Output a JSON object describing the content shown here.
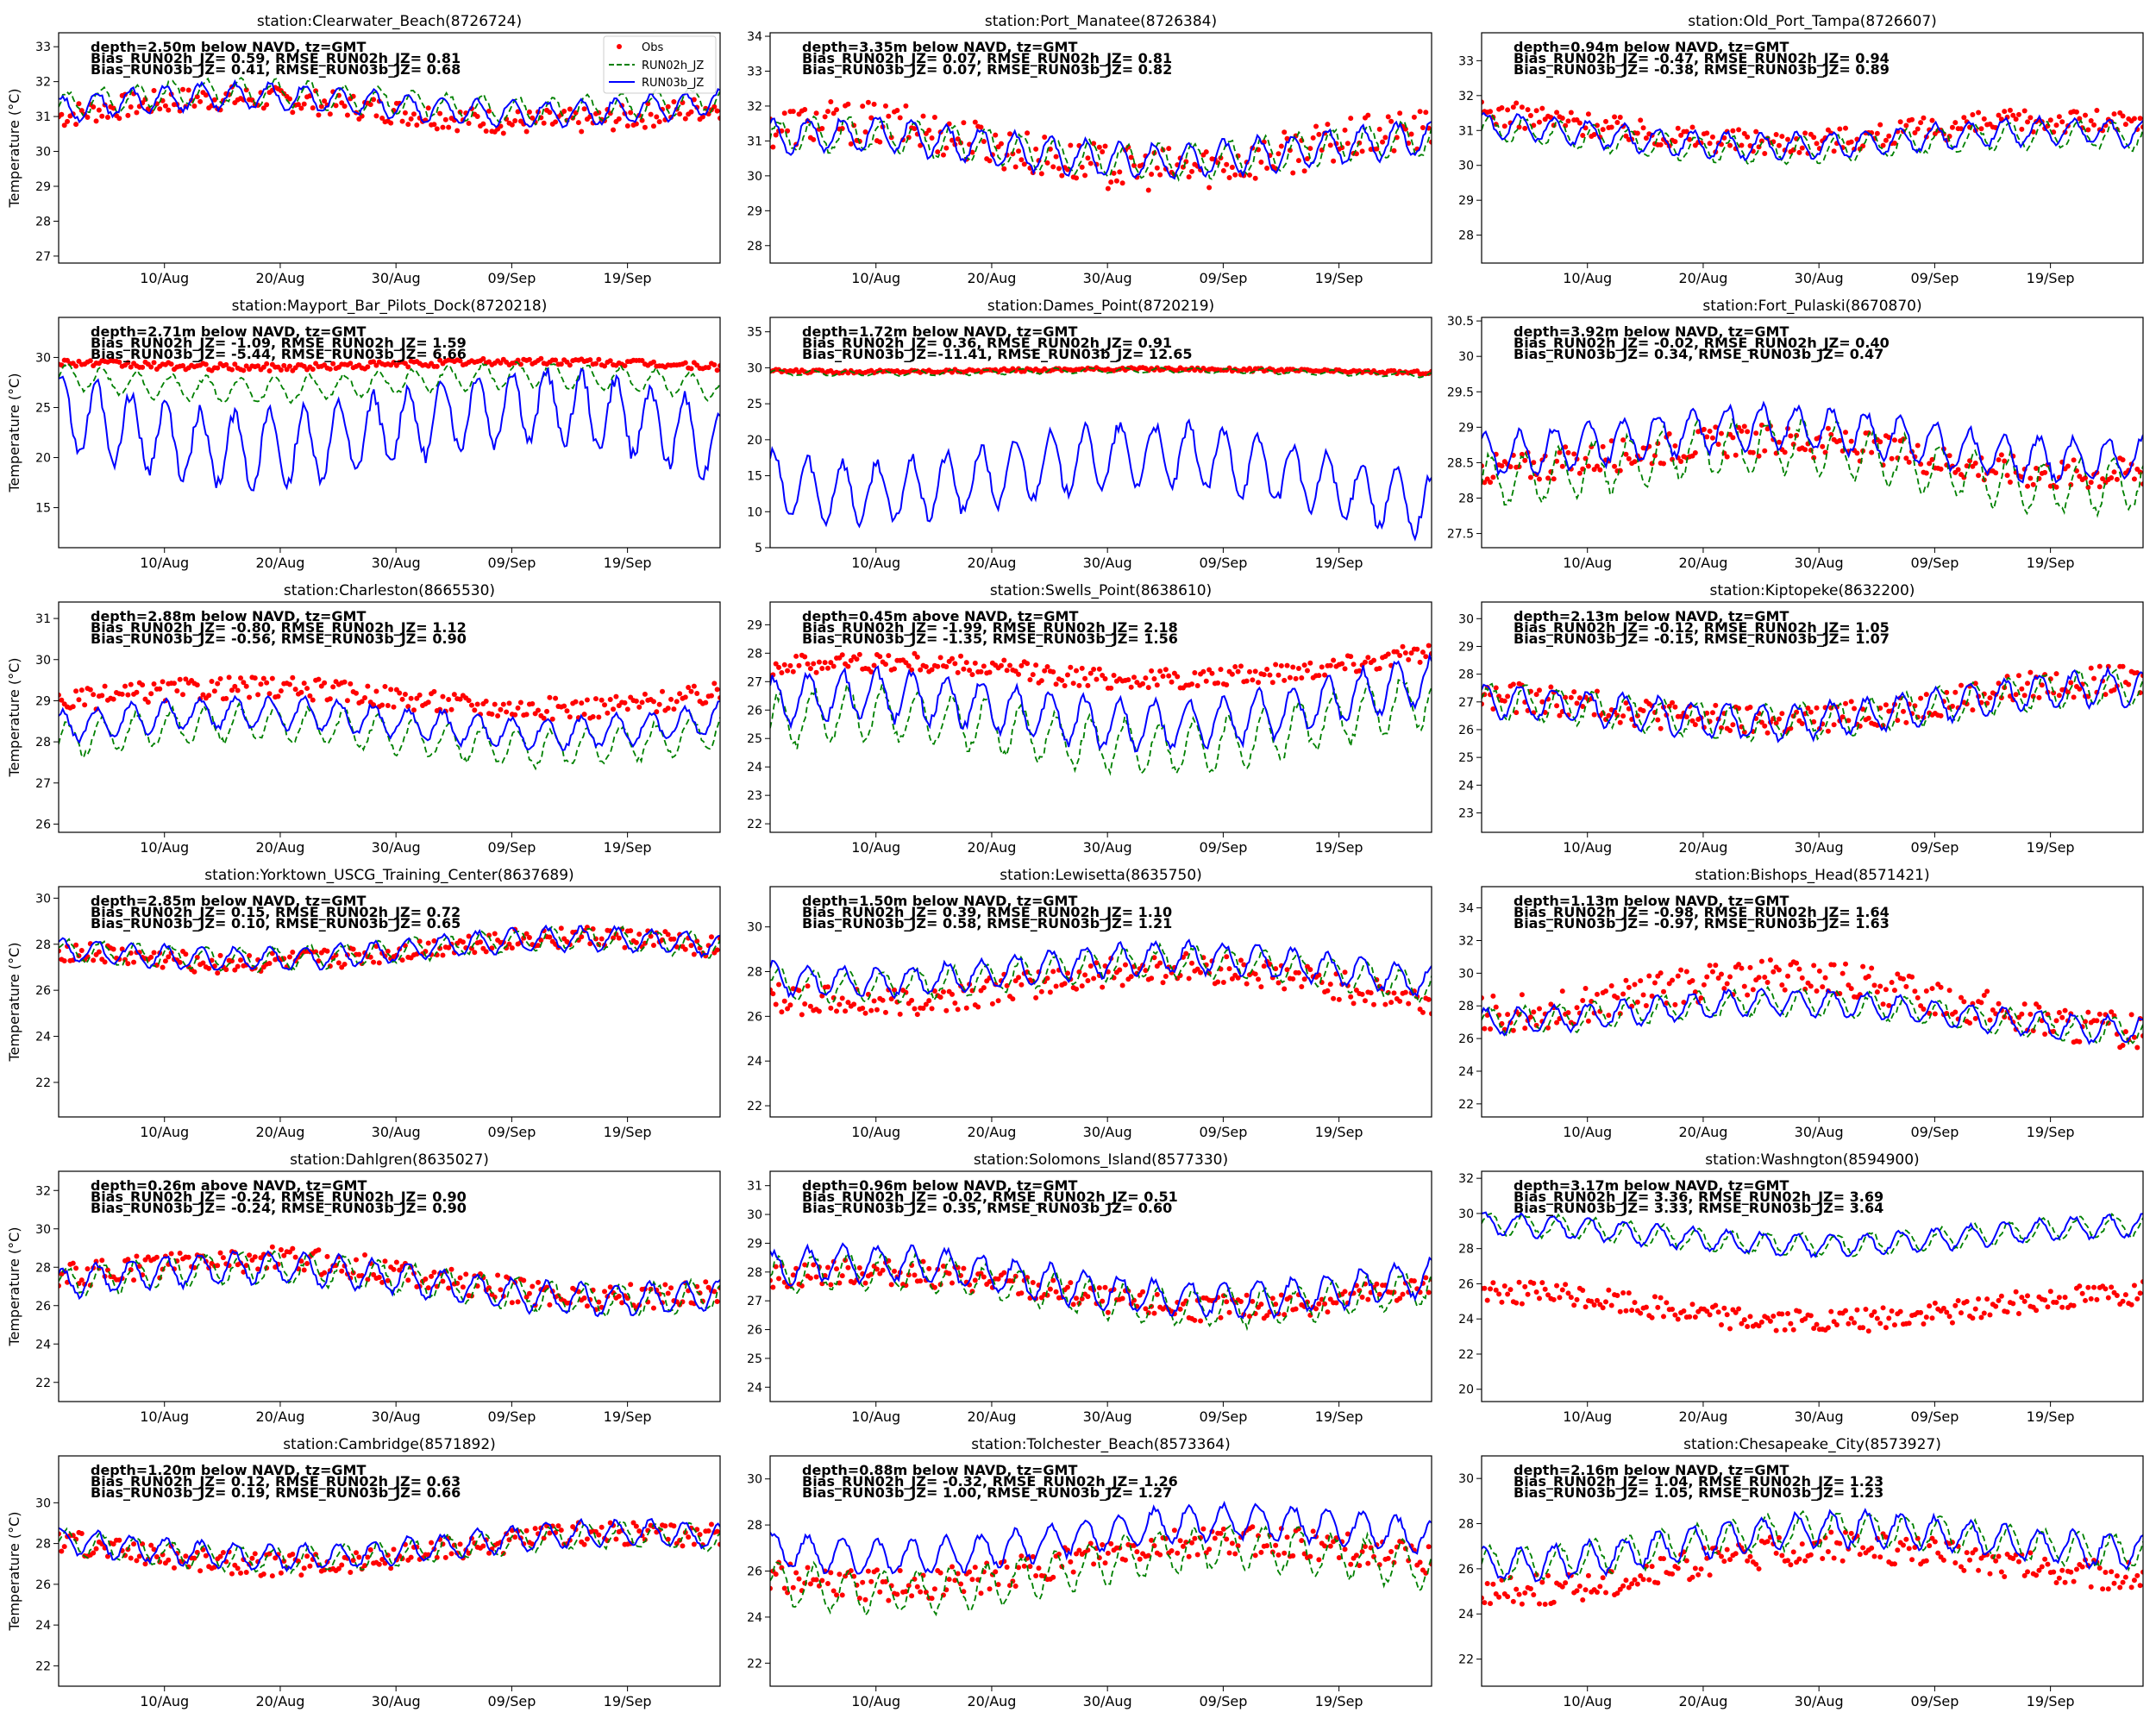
{
  "figure": {
    "ylabel": "Temperature ($^\\circ$C)",
    "ylabel_display": "Temperature (°C)",
    "legend": [
      "Obs",
      "RUN02h_JZ",
      "RUN03b_JZ"
    ],
    "colors": {
      "obs": "#ff0000",
      "run02h": "#008000",
      "run03b": "#0000ff"
    }
  },
  "chart_data": [
    {
      "type": "line",
      "title": "station:Clearwater_Beach(8726724)",
      "depth": "depth=2.50m below NAVD, tz=GMT",
      "bias1": "Bias_RUN02h_JZ=  0.59, RMSE_RUN02h_JZ=  0.81",
      "bias2": "Bias_RUN03b_JZ=  0.41, RMSE_RUN03b_JZ=  0.68",
      "x_ticks": [
        "10/Aug",
        "20/Aug",
        "30/Aug",
        "09/Sep",
        "19/Sep"
      ],
      "yticks": [
        27,
        28,
        29,
        30,
        31,
        32,
        33
      ],
      "ylim": [
        26.8,
        33.4
      ],
      "obs_mean": 31.0,
      "obs_amp": 0.8,
      "run2_mean": 31.3,
      "run2_amp": 0.6,
      "run3_mean": 31.2,
      "run3_amp": 0.6,
      "legend_shown": true
    },
    {
      "type": "line",
      "title": "station:Port_Manatee(8726384)",
      "depth": "depth=3.35m below NAVD, tz=GMT",
      "bias1": "Bias_RUN02h_JZ=  0.07, RMSE_RUN02h_JZ=  0.81",
      "bias2": "Bias_RUN03b_JZ=  0.07, RMSE_RUN03b_JZ=  0.82",
      "x_ticks": [
        "10/Aug",
        "20/Aug",
        "30/Aug",
        "09/Sep",
        "19/Sep"
      ],
      "yticks": [
        28,
        29,
        30,
        31,
        32,
        33,
        34
      ],
      "ylim": [
        27.5,
        34.1
      ],
      "obs_mean": 30.5,
      "obs_amp": 1.4,
      "run2_mean": 30.6,
      "run2_amp": 0.8,
      "run3_mean": 30.6,
      "run3_amp": 0.8,
      "legend_shown": false
    },
    {
      "type": "line",
      "title": "station:Old_Port_Tampa(8726607)",
      "depth": "depth=0.94m below NAVD, tz=GMT",
      "bias1": "Bias_RUN02h_JZ= -0.47, RMSE_RUN02h_JZ=  0.94",
      "bias2": "Bias_RUN03b_JZ= -0.38, RMSE_RUN03b_JZ=  0.89",
      "x_ticks": [
        "10/Aug",
        "20/Aug",
        "30/Aug",
        "09/Sep",
        "19/Sep"
      ],
      "yticks": [
        28,
        29,
        30,
        31,
        32,
        33
      ],
      "ylim": [
        27.2,
        33.8
      ],
      "obs_mean": 30.9,
      "obs_amp": 0.8,
      "run2_mean": 30.6,
      "run2_amp": 0.6,
      "run3_mean": 30.7,
      "run3_amp": 0.6,
      "legend_shown": false
    },
    {
      "type": "line",
      "title": "station:Mayport_Bar_Pilots_Dock(8720218)",
      "depth": "depth=2.71m below NAVD, tz=GMT",
      "bias1": "Bias_RUN02h_JZ= -1.09, RMSE_RUN02h_JZ=  1.59",
      "bias2": "Bias_RUN03b_JZ= -5.44, RMSE_RUN03b_JZ=  6.66",
      "x_ticks": [
        "10/Aug",
        "20/Aug",
        "30/Aug",
        "09/Sep",
        "19/Sep"
      ],
      "yticks": [
        15,
        20,
        25,
        30
      ],
      "ylim": [
        11,
        34
      ],
      "obs_mean": 29.3,
      "obs_amp": 0.8,
      "run2_mean": 27.5,
      "run2_amp": 2.0,
      "run3_mean": 23.0,
      "run3_amp": 6.0,
      "legend_shown": false
    },
    {
      "type": "line",
      "title": "station:Dames_Point(8720219)",
      "depth": "depth=1.72m below NAVD, tz=GMT",
      "bias1": "Bias_RUN02h_JZ=  0.36, RMSE_RUN02h_JZ=  0.91",
      "bias2": "Bias_RUN03b_JZ=-11.41, RMSE_RUN03b_JZ= 12.65",
      "x_ticks": [
        "10/Aug",
        "20/Aug",
        "30/Aug",
        "09/Sep",
        "19/Sep"
      ],
      "yticks": [
        5,
        10,
        15,
        20,
        25,
        30,
        35
      ],
      "ylim": [
        5,
        37
      ],
      "obs_mean": 29.7,
      "obs_amp": 0.5,
      "run2_mean": 29.5,
      "run2_amp": 0.6,
      "run3_mean": 16.0,
      "run3_amp": 7.0,
      "legend_shown": false
    },
    {
      "type": "line",
      "title": "station:Fort_Pulaski(8670870)",
      "depth": "depth=3.92m below NAVD, tz=GMT",
      "bias1": "Bias_RUN02h_JZ= -0.02, RMSE_RUN02h_JZ=  0.40",
      "bias2": "Bias_RUN03b_JZ=  0.34, RMSE_RUN03b_JZ=  0.47",
      "x_ticks": [
        "10/Aug",
        "20/Aug",
        "30/Aug",
        "09/Sep",
        "19/Sep"
      ],
      "yticks": [
        27.5,
        28.0,
        28.5,
        29.0,
        29.5,
        30.0,
        30.5
      ],
      "ylim": [
        27.3,
        30.55
      ],
      "obs_mean": 28.7,
      "obs_amp": 0.5,
      "run2_mean": 28.6,
      "run2_amp": 0.6,
      "run3_mean": 28.9,
      "run3_amp": 0.5,
      "legend_shown": false
    },
    {
      "type": "line",
      "title": "station:Charleston(8665530)",
      "depth": "depth=2.88m below NAVD, tz=GMT",
      "bias1": "Bias_RUN02h_JZ= -0.80, RMSE_RUN02h_JZ=  1.12",
      "bias2": "Bias_RUN03b_JZ= -0.56, RMSE_RUN03b_JZ=  0.90",
      "x_ticks": [
        "10/Aug",
        "20/Aug",
        "30/Aug",
        "09/Sep",
        "19/Sep"
      ],
      "yticks": [
        26,
        27,
        28,
        29,
        30,
        31
      ],
      "ylim": [
        25.8,
        31.4
      ],
      "obs_mean": 29.2,
      "obs_amp": 0.6,
      "run2_mean": 28.3,
      "run2_amp": 0.7,
      "run3_mean": 28.6,
      "run3_amp": 0.6,
      "legend_shown": false
    },
    {
      "type": "line",
      "title": "station:Swells_Point(8638610)",
      "depth": "depth=0.45m above NAVD, tz=GMT",
      "bias1": "Bias_RUN02h_JZ= -1.99, RMSE_RUN02h_JZ=  2.18",
      "bias2": "Bias_RUN03b_JZ= -1.35, RMSE_RUN03b_JZ=  1.56",
      "x_ticks": [
        "10/Aug",
        "20/Aug",
        "30/Aug",
        "09/Sep",
        "19/Sep"
      ],
      "yticks": [
        22,
        23,
        24,
        25,
        26,
        27,
        28,
        29
      ],
      "ylim": [
        21.7,
        29.8
      ],
      "obs_mean": 27.5,
      "obs_amp": 0.8,
      "run2_mean": 25.5,
      "run2_amp": 1.5,
      "run3_mean": 26.2,
      "run3_amp": 1.4,
      "legend_shown": false
    },
    {
      "type": "line",
      "title": "station:Kiptopeke(8632200)",
      "depth": "depth=2.13m below NAVD, tz=GMT",
      "bias1": "Bias_RUN02h_JZ= -0.12, RMSE_RUN02h_JZ=  1.05",
      "bias2": "Bias_RUN03b_JZ= -0.15, RMSE_RUN03b_JZ=  1.07",
      "x_ticks": [
        "10/Aug",
        "20/Aug",
        "30/Aug",
        "09/Sep",
        "19/Sep"
      ],
      "yticks": [
        23,
        24,
        25,
        26,
        27,
        28,
        29,
        30
      ],
      "ylim": [
        22.3,
        30.6
      ],
      "obs_mean": 26.8,
      "obs_amp": 1.2,
      "run2_mean": 26.7,
      "run2_amp": 1.0,
      "run3_mean": 26.7,
      "run3_amp": 1.0,
      "legend_shown": false
    },
    {
      "type": "line",
      "title": "station:Yorktown_USCG_Training_Center(8637689)",
      "depth": "depth=2.85m below NAVD, tz=GMT",
      "bias1": "Bias_RUN02h_JZ=  0.15, RMSE_RUN02h_JZ=  0.72",
      "bias2": "Bias_RUN03b_JZ=  0.10, RMSE_RUN03b_JZ=  0.65",
      "x_ticks": [
        "10/Aug",
        "20/Aug",
        "30/Aug",
        "09/Sep",
        "19/Sep"
      ],
      "yticks": [
        22,
        24,
        26,
        28,
        30
      ],
      "ylim": [
        20.5,
        30.5
      ],
      "obs_mean": 27.5,
      "obs_amp": 1.0,
      "run2_mean": 27.6,
      "run2_amp": 0.8,
      "run3_mean": 27.6,
      "run3_amp": 0.8,
      "legend_shown": false
    },
    {
      "type": "line",
      "title": "station:Lewisetta(8635750)",
      "depth": "depth=1.50m below NAVD, tz=GMT",
      "bias1": "Bias_RUN02h_JZ=  0.39, RMSE_RUN02h_JZ=  1.10",
      "bias2": "Bias_RUN03b_JZ=  0.58, RMSE_RUN03b_JZ=  1.21",
      "x_ticks": [
        "10/Aug",
        "20/Aug",
        "30/Aug",
        "09/Sep",
        "19/Sep"
      ],
      "yticks": [
        22,
        24,
        26,
        28,
        30
      ],
      "ylim": [
        21.5,
        31.8
      ],
      "obs_mean": 27.0,
      "obs_amp": 1.5,
      "run2_mean": 27.6,
      "run2_amp": 1.1,
      "run3_mean": 27.8,
      "run3_amp": 1.1,
      "legend_shown": false
    },
    {
      "type": "line",
      "title": "station:Bishops_Head(8571421)",
      "depth": "depth=1.13m below NAVD, tz=GMT",
      "bias1": "Bias_RUN02h_JZ= -0.98, RMSE_RUN02h_JZ=  1.64",
      "bias2": "Bias_RUN03b_JZ= -0.97, RMSE_RUN03b_JZ=  1.63",
      "x_ticks": [
        "10/Aug",
        "20/Aug",
        "30/Aug",
        "09/Sep",
        "19/Sep"
      ],
      "yticks": [
        22,
        24,
        26,
        28,
        30,
        32,
        34
      ],
      "ylim": [
        21.2,
        35.3
      ],
      "obs_mean": 28.0,
      "obs_amp": 2.5,
      "run2_mean": 27.3,
      "run2_amp": 1.3,
      "run3_mean": 27.3,
      "run3_amp": 1.3,
      "legend_shown": false
    },
    {
      "type": "line",
      "title": "station:Dahlgren(8635027)",
      "depth": "depth=0.26m above NAVD, tz=GMT",
      "bias1": "Bias_RUN02h_JZ= -0.24, RMSE_RUN02h_JZ=  0.90",
      "bias2": "Bias_RUN03b_JZ= -0.24, RMSE_RUN03b_JZ=  0.90",
      "x_ticks": [
        "10/Aug",
        "20/Aug",
        "30/Aug",
        "09/Sep",
        "19/Sep"
      ],
      "yticks": [
        22,
        24,
        26,
        28,
        30,
        32
      ],
      "ylim": [
        21.0,
        33.0
      ],
      "obs_mean": 27.5,
      "obs_amp": 1.5,
      "run2_mean": 27.2,
      "run2_amp": 1.3,
      "run3_mean": 27.2,
      "run3_amp": 1.3,
      "legend_shown": false
    },
    {
      "type": "line",
      "title": "station:Solomons_Island(8577330)",
      "depth": "depth=0.96m below NAVD, tz=GMT",
      "bias1": "Bias_RUN02h_JZ= -0.02, RMSE_RUN02h_JZ=  0.51",
      "bias2": "Bias_RUN03b_JZ=  0.35, RMSE_RUN03b_JZ=  0.60",
      "x_ticks": [
        "10/Aug",
        "20/Aug",
        "30/Aug",
        "09/Sep",
        "19/Sep"
      ],
      "yticks": [
        24,
        25,
        26,
        27,
        28,
        29,
        30,
        31
      ],
      "ylim": [
        23.5,
        31.5
      ],
      "obs_mean": 27.5,
      "obs_amp": 1.0,
      "run2_mean": 27.5,
      "run2_amp": 1.0,
      "run3_mean": 27.8,
      "run3_amp": 1.0,
      "legend_shown": false
    },
    {
      "type": "line",
      "title": "station:Washngton(8594900)",
      "depth": "depth=3.17m below NAVD, tz=GMT",
      "bias1": "Bias_RUN02h_JZ=  3.36, RMSE_RUN02h_JZ=  3.69",
      "bias2": "Bias_RUN03b_JZ=  3.33, RMSE_RUN03b_JZ=  3.64",
      "x_ticks": [
        "10/Aug",
        "20/Aug",
        "30/Aug",
        "09/Sep",
        "19/Sep"
      ],
      "yticks": [
        20,
        22,
        24,
        26,
        28,
        30,
        32
      ],
      "ylim": [
        19.3,
        32.4
      ],
      "obs_mean": 25.0,
      "obs_amp": 1.5,
      "run2_mean": 29.0,
      "run2_amp": 1.0,
      "run3_mean": 29.0,
      "run3_amp": 1.0,
      "legend_shown": false
    },
    {
      "type": "line",
      "title": "station:Cambridge(8571892)",
      "depth": "depth=1.20m below NAVD, tz=GMT",
      "bias1": "Bias_RUN02h_JZ=  0.12, RMSE_RUN02h_JZ=  0.63",
      "bias2": "Bias_RUN03b_JZ=  0.19, RMSE_RUN03b_JZ=  0.66",
      "x_ticks": [
        "10/Aug",
        "20/Aug",
        "30/Aug",
        "09/Sep",
        "19/Sep"
      ],
      "yticks": [
        22,
        24,
        26,
        28,
        30
      ],
      "ylim": [
        21.0,
        32.3
      ],
      "obs_mean": 28.0,
      "obs_amp": 1.3,
      "run2_mean": 28.0,
      "run2_amp": 1.0,
      "run3_mean": 28.1,
      "run3_amp": 1.0,
      "legend_shown": false
    },
    {
      "type": "line",
      "title": "station:Tolchester_Beach(8573364)",
      "depth": "depth=0.88m below NAVD, tz=GMT",
      "bias1": "Bias_RUN02h_JZ= -0.32, RMSE_RUN02h_JZ=  1.26",
      "bias2": "Bias_RUN03b_JZ=  1.00, RMSE_RUN03b_JZ=  1.27",
      "x_ticks": [
        "10/Aug",
        "20/Aug",
        "30/Aug",
        "09/Sep",
        "19/Sep"
      ],
      "yticks": [
        22,
        24,
        26,
        28,
        30
      ],
      "ylim": [
        21.0,
        31.0
      ],
      "obs_mean": 26.5,
      "obs_amp": 1.5,
      "run2_mean": 26.2,
      "run2_amp": 1.5,
      "run3_mean": 27.5,
      "run3_amp": 1.2,
      "legend_shown": false
    },
    {
      "type": "line",
      "title": "station:Chesapeake_City(8573927)",
      "depth": "depth=2.16m below NAVD, tz=GMT",
      "bias1": "Bias_RUN02h_JZ=  1.04, RMSE_RUN02h_JZ=  1.23",
      "bias2": "Bias_RUN03b_JZ=  1.05, RMSE_RUN03b_JZ=  1.23",
      "x_ticks": [
        "10/Aug",
        "20/Aug",
        "30/Aug",
        "09/Sep",
        "19/Sep"
      ],
      "yticks": [
        22,
        24,
        26,
        28,
        30
      ],
      "ylim": [
        20.8,
        31.0
      ],
      "obs_mean": 26.0,
      "obs_amp": 1.5,
      "run2_mean": 27.0,
      "run2_amp": 1.2,
      "run3_mean": 27.0,
      "run3_amp": 1.2,
      "legend_shown": false
    }
  ]
}
